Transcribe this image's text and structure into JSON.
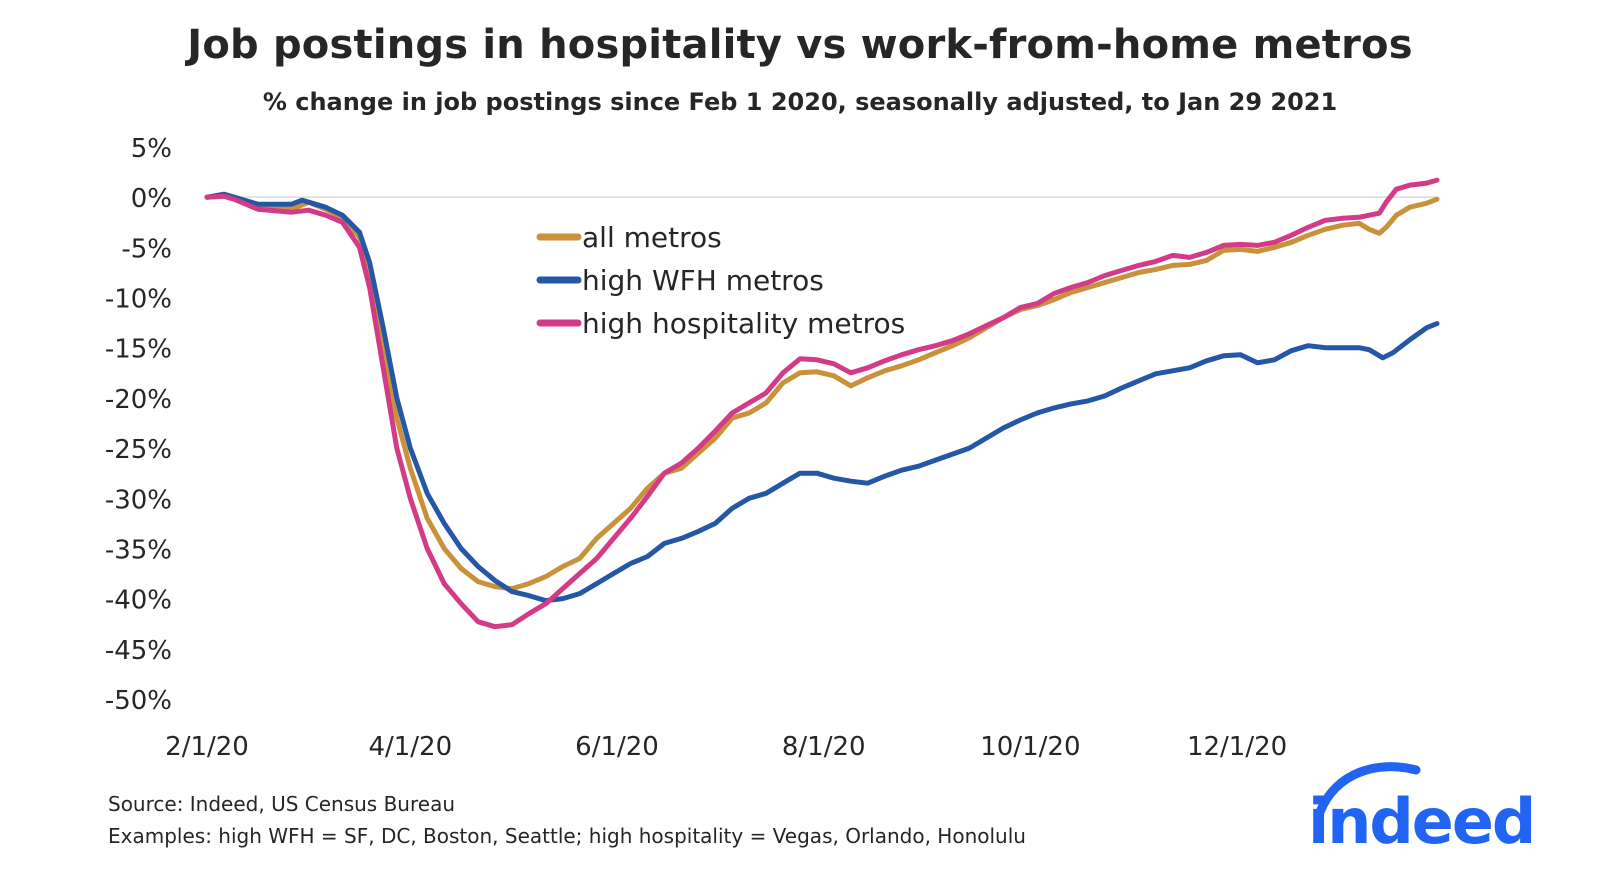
{
  "chart_data": {
    "type": "line",
    "title": "Job postings in hospitality vs work-from-home metros",
    "subtitle": "% change in job postings since Feb 1 2020, seasonally adjusted, to Jan 29 2021",
    "xlabel": "",
    "ylabel": "",
    "x_unit": "days since 2/1/20",
    "xlim": [
      0,
      363
    ],
    "ylim": [
      -50,
      5
    ],
    "y_ticks": [
      5,
      0,
      -5,
      -10,
      -15,
      -20,
      -25,
      -30,
      -35,
      -40,
      -45,
      -50
    ],
    "y_tick_labels": [
      "5%",
      "0%",
      "-5%",
      "-10%",
      "-15%",
      "-20%",
      "-25%",
      "-30%",
      "-35%",
      "-40%",
      "-45%",
      "-50%"
    ],
    "x_ticks": [
      0,
      60,
      121,
      182,
      243,
      304
    ],
    "x_tick_labels": [
      "2/1/20",
      "4/1/20",
      "6/1/20",
      "8/1/20",
      "10/1/20",
      "12/1/20"
    ],
    "zero_line": true,
    "legend_position": "top-center",
    "series": [
      {
        "name": "all metros",
        "color": "#c8913a",
        "points": [
          [
            0,
            0
          ],
          [
            5,
            0.2
          ],
          [
            8,
            0
          ],
          [
            15,
            -1
          ],
          [
            25,
            -1.2
          ],
          [
            30,
            -0.5
          ],
          [
            35,
            -1.2
          ],
          [
            40,
            -2
          ],
          [
            45,
            -4
          ],
          [
            48,
            -8
          ],
          [
            52,
            -15
          ],
          [
            56,
            -22
          ],
          [
            60,
            -27
          ],
          [
            65,
            -32
          ],
          [
            70,
            -35
          ],
          [
            75,
            -37
          ],
          [
            80,
            -38.3
          ],
          [
            85,
            -38.8
          ],
          [
            90,
            -39
          ],
          [
            95,
            -38.5
          ],
          [
            100,
            -37.8
          ],
          [
            105,
            -36.8
          ],
          [
            110,
            -36
          ],
          [
            115,
            -34
          ],
          [
            120,
            -32.5
          ],
          [
            125,
            -31
          ],
          [
            130,
            -29
          ],
          [
            135,
            -27.5
          ],
          [
            140,
            -27
          ],
          [
            145,
            -25.5
          ],
          [
            150,
            -24
          ],
          [
            155,
            -22
          ],
          [
            160,
            -21.5
          ],
          [
            165,
            -20.5
          ],
          [
            170,
            -18.5
          ],
          [
            175,
            -17.5
          ],
          [
            180,
            -17.4
          ],
          [
            185,
            -17.8
          ],
          [
            190,
            -18.8
          ],
          [
            195,
            -18
          ],
          [
            200,
            -17.3
          ],
          [
            205,
            -16.8
          ],
          [
            210,
            -16.2
          ],
          [
            215,
            -15.5
          ],
          [
            220,
            -14.8
          ],
          [
            225,
            -14
          ],
          [
            230,
            -13
          ],
          [
            235,
            -12
          ],
          [
            240,
            -11.2
          ],
          [
            245,
            -10.8
          ],
          [
            250,
            -10.2
          ],
          [
            255,
            -9.5
          ],
          [
            260,
            -9
          ],
          [
            265,
            -8.5
          ],
          [
            270,
            -8
          ],
          [
            275,
            -7.5
          ],
          [
            280,
            -7.2
          ],
          [
            285,
            -6.8
          ],
          [
            290,
            -6.7
          ],
          [
            295,
            -6.3
          ],
          [
            300,
            -5.3
          ],
          [
            305,
            -5.2
          ],
          [
            310,
            -5.4
          ],
          [
            315,
            -5
          ],
          [
            320,
            -4.5
          ],
          [
            325,
            -3.8
          ],
          [
            330,
            -3.2
          ],
          [
            335,
            -2.8
          ],
          [
            340,
            -2.6
          ],
          [
            343,
            -3.2
          ],
          [
            346,
            -3.6
          ],
          [
            348,
            -3
          ],
          [
            351,
            -1.8
          ],
          [
            355,
            -1
          ],
          [
            360,
            -0.6
          ],
          [
            363,
            -0.2
          ]
        ]
      },
      {
        "name": "high WFH metros",
        "color": "#2557a7",
        "points": [
          [
            0,
            0
          ],
          [
            5,
            0.3
          ],
          [
            8,
            0
          ],
          [
            15,
            -0.7
          ],
          [
            25,
            -0.7
          ],
          [
            28,
            -0.3
          ],
          [
            35,
            -1
          ],
          [
            40,
            -1.8
          ],
          [
            45,
            -3.5
          ],
          [
            48,
            -6.5
          ],
          [
            52,
            -13
          ],
          [
            56,
            -20
          ],
          [
            60,
            -25
          ],
          [
            65,
            -29.5
          ],
          [
            70,
            -32.5
          ],
          [
            75,
            -35
          ],
          [
            80,
            -36.8
          ],
          [
            85,
            -38.2
          ],
          [
            90,
            -39.3
          ],
          [
            95,
            -39.7
          ],
          [
            100,
            -40.2
          ],
          [
            105,
            -40
          ],
          [
            110,
            -39.5
          ],
          [
            115,
            -38.5
          ],
          [
            120,
            -37.5
          ],
          [
            125,
            -36.5
          ],
          [
            130,
            -35.8
          ],
          [
            135,
            -34.5
          ],
          [
            140,
            -34
          ],
          [
            145,
            -33.3
          ],
          [
            150,
            -32.5
          ],
          [
            155,
            -31
          ],
          [
            160,
            -30
          ],
          [
            165,
            -29.5
          ],
          [
            170,
            -28.5
          ],
          [
            175,
            -27.5
          ],
          [
            180,
            -27.5
          ],
          [
            185,
            -28
          ],
          [
            190,
            -28.3
          ],
          [
            195,
            -28.5
          ],
          [
            200,
            -27.8
          ],
          [
            205,
            -27.2
          ],
          [
            210,
            -26.8
          ],
          [
            215,
            -26.2
          ],
          [
            220,
            -25.6
          ],
          [
            225,
            -25
          ],
          [
            230,
            -24
          ],
          [
            235,
            -23
          ],
          [
            240,
            -22.2
          ],
          [
            245,
            -21.5
          ],
          [
            250,
            -21
          ],
          [
            255,
            -20.6
          ],
          [
            260,
            -20.3
          ],
          [
            265,
            -19.8
          ],
          [
            270,
            -19
          ],
          [
            275,
            -18.3
          ],
          [
            280,
            -17.6
          ],
          [
            285,
            -17.3
          ],
          [
            290,
            -17
          ],
          [
            295,
            -16.3
          ],
          [
            300,
            -15.8
          ],
          [
            305,
            -15.7
          ],
          [
            310,
            -16.5
          ],
          [
            315,
            -16.2
          ],
          [
            320,
            -15.3
          ],
          [
            325,
            -14.8
          ],
          [
            330,
            -15
          ],
          [
            335,
            -15
          ],
          [
            340,
            -15
          ],
          [
            343,
            -15.2
          ],
          [
            347,
            -16
          ],
          [
            350,
            -15.5
          ],
          [
            355,
            -14.2
          ],
          [
            360,
            -13
          ],
          [
            363,
            -12.6
          ]
        ]
      },
      {
        "name": "high hospitality metros",
        "color": "#d43b86",
        "points": [
          [
            0,
            0
          ],
          [
            5,
            0.1
          ],
          [
            8,
            -0.2
          ],
          [
            15,
            -1.2
          ],
          [
            25,
            -1.5
          ],
          [
            30,
            -1.3
          ],
          [
            35,
            -1.8
          ],
          [
            40,
            -2.5
          ],
          [
            45,
            -5
          ],
          [
            48,
            -9
          ],
          [
            52,
            -17
          ],
          [
            56,
            -25
          ],
          [
            60,
            -30
          ],
          [
            65,
            -35
          ],
          [
            70,
            -38.5
          ],
          [
            75,
            -40.5
          ],
          [
            80,
            -42.3
          ],
          [
            85,
            -42.8
          ],
          [
            90,
            -42.6
          ],
          [
            95,
            -41.5
          ],
          [
            100,
            -40.5
          ],
          [
            105,
            -39
          ],
          [
            110,
            -37.5
          ],
          [
            115,
            -36
          ],
          [
            120,
            -34
          ],
          [
            125,
            -32
          ],
          [
            130,
            -29.8
          ],
          [
            135,
            -27.5
          ],
          [
            140,
            -26.5
          ],
          [
            145,
            -25
          ],
          [
            150,
            -23.3
          ],
          [
            155,
            -21.5
          ],
          [
            160,
            -20.5
          ],
          [
            165,
            -19.5
          ],
          [
            170,
            -17.5
          ],
          [
            175,
            -16.1
          ],
          [
            180,
            -16.2
          ],
          [
            185,
            -16.6
          ],
          [
            190,
            -17.5
          ],
          [
            195,
            -17
          ],
          [
            200,
            -16.3
          ],
          [
            205,
            -15.7
          ],
          [
            210,
            -15.2
          ],
          [
            215,
            -14.8
          ],
          [
            220,
            -14.3
          ],
          [
            225,
            -13.6
          ],
          [
            230,
            -12.8
          ],
          [
            235,
            -12
          ],
          [
            240,
            -11
          ],
          [
            245,
            -10.6
          ],
          [
            250,
            -9.6
          ],
          [
            255,
            -9
          ],
          [
            260,
            -8.5
          ],
          [
            265,
            -7.8
          ],
          [
            270,
            -7.3
          ],
          [
            275,
            -6.8
          ],
          [
            280,
            -6.4
          ],
          [
            285,
            -5.8
          ],
          [
            290,
            -6
          ],
          [
            295,
            -5.5
          ],
          [
            300,
            -4.8
          ],
          [
            305,
            -4.7
          ],
          [
            310,
            -4.8
          ],
          [
            315,
            -4.5
          ],
          [
            320,
            -3.8
          ],
          [
            325,
            -3
          ],
          [
            330,
            -2.3
          ],
          [
            335,
            -2.1
          ],
          [
            340,
            -2
          ],
          [
            343,
            -1.8
          ],
          [
            346,
            -1.6
          ],
          [
            348,
            -0.5
          ],
          [
            351,
            0.8
          ],
          [
            355,
            1.2
          ],
          [
            360,
            1.4
          ],
          [
            363,
            1.7
          ]
        ]
      }
    ]
  },
  "footer": {
    "source": "Source: Indeed, US Census Bureau",
    "examples": "Examples: high WFH = SF, DC, Boston, Seattle; high hospitality = Vegas, Orlando, Honolulu"
  },
  "logo": {
    "text": "indeed",
    "color": "#2164f3"
  }
}
